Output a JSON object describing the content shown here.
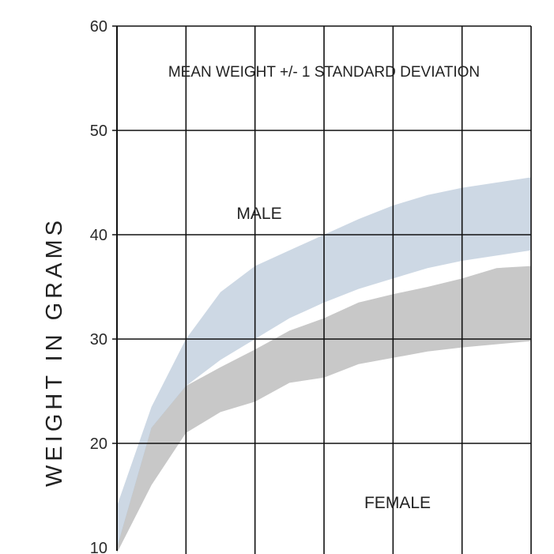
{
  "chart_data": {
    "type": "area",
    "ylabel": "WEIGHT IN GRAMS",
    "annotation": "MEAN WEIGHT +/- 1 STANDARD DEVIATION",
    "ylim": [
      10,
      60
    ],
    "yticks": [
      10,
      20,
      30,
      40,
      50,
      60
    ],
    "x_gridlines": 6,
    "grid": true,
    "colors": {
      "male": "#cdd8e4",
      "female": "#c8c8c8",
      "overlap": "#6b8aa5",
      "grid": "#111111",
      "text": "#222222"
    },
    "series": [
      {
        "name": "MALE",
        "upper": [
          [
            0,
            14
          ],
          [
            0.5,
            23.5
          ],
          [
            1,
            30
          ],
          [
            1.5,
            34.5
          ],
          [
            2,
            37
          ],
          [
            2.5,
            38.5
          ],
          [
            3,
            40
          ],
          [
            3.5,
            41.5
          ],
          [
            4,
            42.8
          ],
          [
            4.5,
            43.8
          ],
          [
            5,
            44.5
          ],
          [
            5.5,
            45
          ],
          [
            6,
            45.5
          ]
        ],
        "lower": [
          [
            0,
            10
          ],
          [
            0.5,
            21.5
          ],
          [
            1,
            25.5
          ],
          [
            1.5,
            28
          ],
          [
            2,
            30
          ],
          [
            2.5,
            32
          ],
          [
            3,
            33.5
          ],
          [
            3.5,
            34.8
          ],
          [
            4,
            35.8
          ],
          [
            4.5,
            36.8
          ],
          [
            5,
            37.5
          ],
          [
            5.5,
            38
          ],
          [
            6,
            38.5
          ]
        ]
      },
      {
        "name": "FEMALE",
        "upper": [
          [
            0,
            10
          ],
          [
            0.5,
            21.5
          ],
          [
            1,
            25.5
          ],
          [
            1.5,
            27.3
          ],
          [
            2,
            29
          ],
          [
            2.5,
            30.8
          ],
          [
            3,
            32
          ],
          [
            3.5,
            33.5
          ],
          [
            4,
            34.3
          ],
          [
            4.5,
            35
          ],
          [
            5,
            35.8
          ],
          [
            5.5,
            36.8
          ],
          [
            6,
            37
          ]
        ],
        "lower": [
          [
            0,
            9.5
          ],
          [
            0.5,
            16
          ],
          [
            1,
            21
          ],
          [
            1.5,
            23
          ],
          [
            2,
            24
          ],
          [
            2.5,
            25.8
          ],
          [
            3,
            26.3
          ],
          [
            3.5,
            27.6
          ],
          [
            4,
            28.2
          ],
          [
            4.5,
            28.8
          ],
          [
            5,
            29.2
          ],
          [
            5.5,
            29.5
          ],
          [
            6,
            29.8
          ]
        ]
      }
    ]
  }
}
